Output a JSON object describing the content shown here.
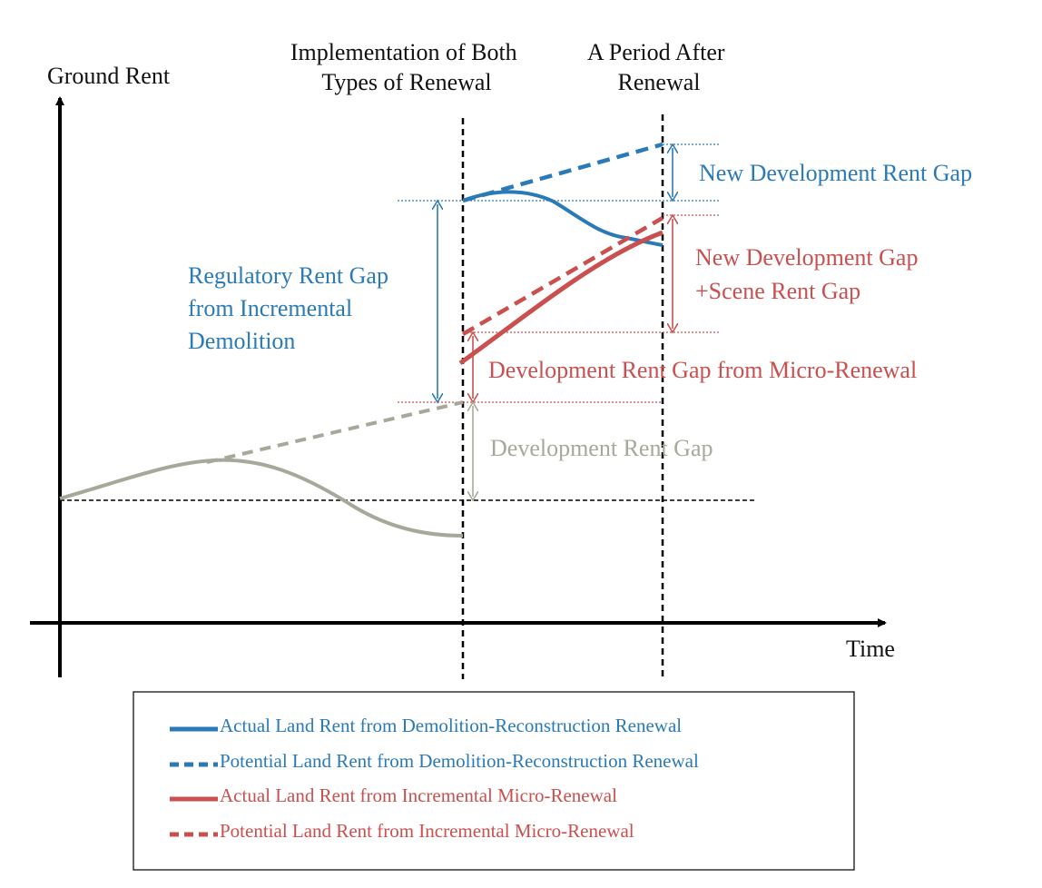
{
  "axes": {
    "y_label": "Ground Rent",
    "x_label": "Time"
  },
  "phases": {
    "implementation": [
      "Implementation of Both",
      "Types of Renewal"
    ],
    "after": [
      "A Period After",
      "Renewal"
    ]
  },
  "annotations": {
    "new_development_rent_gap": "New Development Rent Gap",
    "new_development_scene_gap": [
      "New Development Gap",
      "+Scene Rent Gap"
    ],
    "regulatory_rent_gap": [
      "Regulatory Rent Gap",
      "from Incremental",
      "Demolition"
    ],
    "micro_renewal_gap": "Development Rent Gap from Micro-Renewal",
    "development_rent_gap": "Development Rent Gap"
  },
  "legend": {
    "items": [
      {
        "label": "Actual Land Rent from Demolition-Reconstruction Renewal",
        "color": "#2a7ab8",
        "style": "solid"
      },
      {
        "label": "Potential Land Rent from Demolition-Reconstruction Renewal",
        "color": "#2a7ab8",
        "style": "dashed"
      },
      {
        "label": "Actual Land Rent from Incremental Micro-Renewal",
        "color": "#c9504f",
        "style": "solid"
      },
      {
        "label": "Potential Land Rent from Incremental Micro-Renewal",
        "color": "#c9504f",
        "style": "dashed"
      }
    ]
  },
  "colors": {
    "blue": "#2a7ab8",
    "red": "#c9504f",
    "gray": "#a8a89a",
    "axis": "#000000"
  }
}
